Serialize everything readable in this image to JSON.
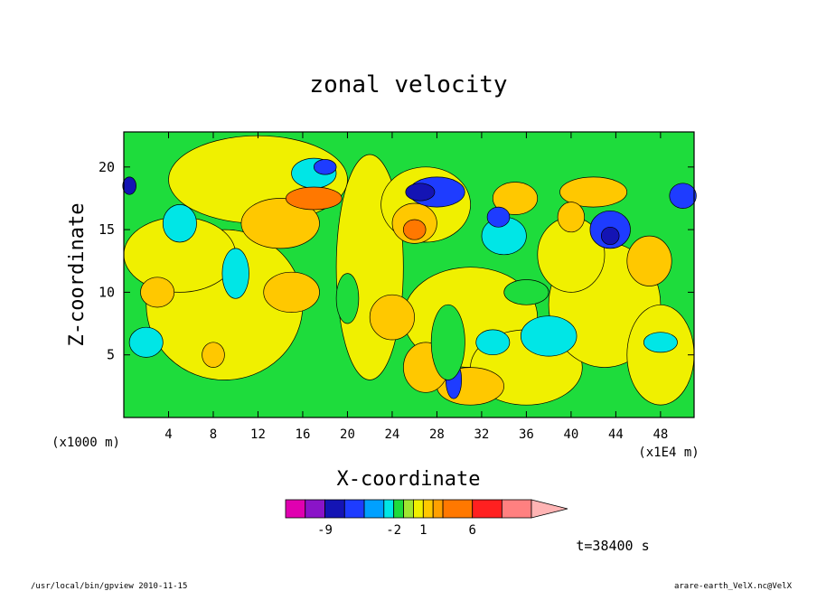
{
  "chart_data": {
    "type": "heatmap",
    "title": "zonal velocity",
    "xlabel": "X-coordinate",
    "ylabel": "Z-coordinate",
    "x_unit_left": "(x1000 m)",
    "x_unit_right": "(x1E4 m)",
    "xlim": [
      0,
      51
    ],
    "ylim": [
      0,
      22.8
    ],
    "x_ticks": [
      4,
      8,
      12,
      16,
      20,
      24,
      28,
      32,
      36,
      40,
      44,
      48
    ],
    "y_ticks": [
      5,
      10,
      15,
      20
    ],
    "time_label": "t=38400 s",
    "colorbar": {
      "labels": [
        {
          "value": -9,
          "text": "-9"
        },
        {
          "value": -2,
          "text": "-2"
        },
        {
          "value": 1,
          "text": "1"
        },
        {
          "value": 6,
          "text": "6"
        }
      ],
      "levels": [
        {
          "min": -13,
          "max": -11,
          "color": "#e000b0"
        },
        {
          "min": -11,
          "max": -9,
          "color": "#8a14c8"
        },
        {
          "min": -9,
          "max": -7,
          "color": "#1414b4"
        },
        {
          "min": -7,
          "max": -5,
          "color": "#1e3cff"
        },
        {
          "min": -5,
          "max": -3,
          "color": "#00a0ff"
        },
        {
          "min": -3,
          "max": -2,
          "color": "#00e6e6"
        },
        {
          "min": -2,
          "max": -1,
          "color": "#1edc3c"
        },
        {
          "min": -1,
          "max": 0,
          "color": "#a0e632"
        },
        {
          "min": 0,
          "max": 1,
          "color": "#f0f000"
        },
        {
          "min": 1,
          "max": 2,
          "color": "#ffc800"
        },
        {
          "min": 2,
          "max": 3,
          "color": "#ffa000"
        },
        {
          "min": 3,
          "max": 6,
          "color": "#ff7800"
        },
        {
          "min": 6,
          "max": 9,
          "color": "#ff2020"
        },
        {
          "min": 9,
          "max": 12,
          "color": "#ff8080"
        },
        {
          "min": 12,
          "max": 15,
          "color": "#ffb4b4"
        }
      ]
    },
    "field_palette": {
      "strong_negative": "#1414b4",
      "negative": "#1e3cff",
      "weak_negative": "#00e6e6",
      "slight_negative": "#1edc3c",
      "near_zero": "#f0f000",
      "positive": "#ffc800",
      "strong_positive": "#ff7800"
    }
  },
  "footer": {
    "left": "/usr/local/bin/gpview   2010-11-15",
    "right": "arare-earth_VelX.nc@VelX"
  }
}
